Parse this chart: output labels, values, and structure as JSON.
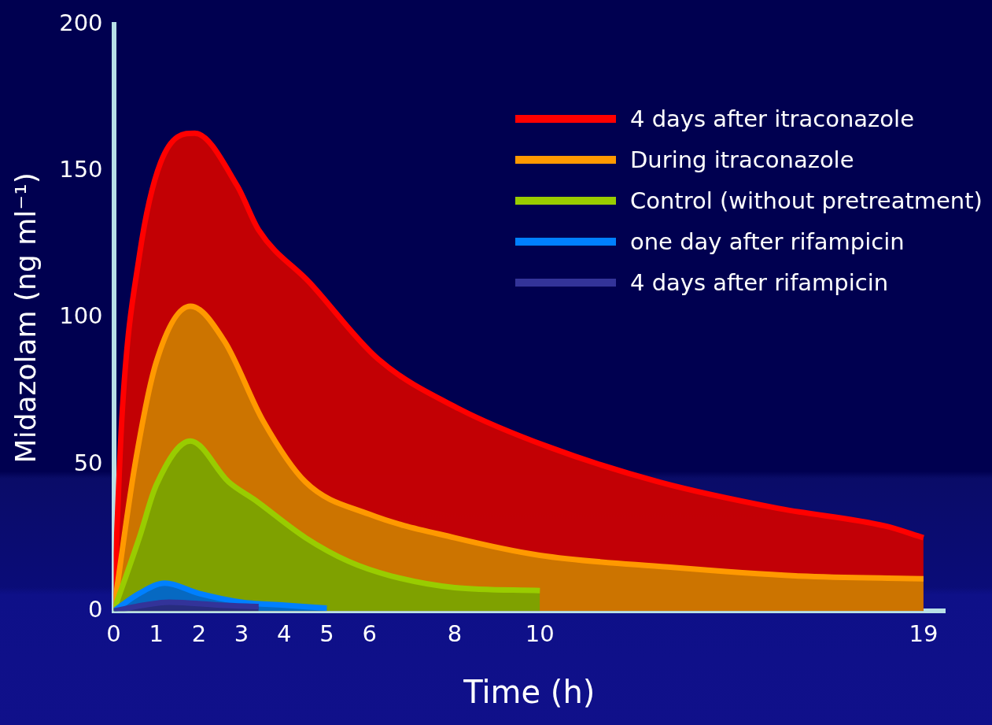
{
  "chart_data": {
    "type": "area",
    "xlabel": "Time (h)",
    "ylabel": "Midazolam (ng ml⁻¹)",
    "xlim": [
      0,
      19.5
    ],
    "xticks": [
      0,
      1,
      2,
      3,
      4,
      5,
      6,
      8,
      10,
      19
    ],
    "ylim": [
      0,
      200
    ],
    "yticks": [
      0,
      50,
      100,
      150,
      200
    ],
    "grid": false,
    "legend": "top right",
    "marker": "none",
    "line_style": "solid",
    "series": [
      {
        "name": "4 days after itraconazole",
        "color": "#ff0000",
        "x": [
          0,
          0.2,
          0.6,
          1.1,
          1.9,
          2.9,
          3.4,
          4.6,
          6.2,
          8.1,
          10.2,
          12.8,
          15.6,
          18.1,
          19
        ],
        "values": [
          0,
          68,
          121,
          153,
          163,
          145,
          130,
          112,
          86,
          69,
          56,
          44,
          35,
          29,
          25
        ]
      },
      {
        "name": "During itraconazole",
        "color": "#ff9900",
        "x": [
          0,
          0.5,
          1,
          1.8,
          2.6,
          3.5,
          4.5,
          6,
          8,
          10,
          13,
          16,
          19
        ],
        "values": [
          0,
          50,
          85,
          104,
          92,
          65,
          44,
          33,
          25,
          19,
          15,
          12,
          11
        ]
      },
      {
        "name": "Control (without pretreatment)",
        "color": "#99cc00",
        "x": [
          0,
          0.6,
          1,
          1.8,
          2.7,
          3.3,
          4.5,
          5.5,
          6.5,
          8,
          10
        ],
        "values": [
          0,
          25,
          43,
          58,
          44,
          38,
          25,
          17,
          12,
          8,
          7
        ]
      },
      {
        "name": "one day after rifampicin",
        "color": "#0080ff",
        "x": [
          0,
          0.6,
          1.2,
          2,
          3,
          4,
          5
        ],
        "values": [
          0,
          6,
          9.5,
          6,
          3,
          2,
          1
        ]
      },
      {
        "name": "4 days after rifampicin",
        "color": "#333399",
        "x": [
          0,
          0.7,
          1.3,
          2.5,
          3.4
        ],
        "values": [
          0,
          2,
          3,
          2,
          1.5
        ]
      }
    ]
  }
}
